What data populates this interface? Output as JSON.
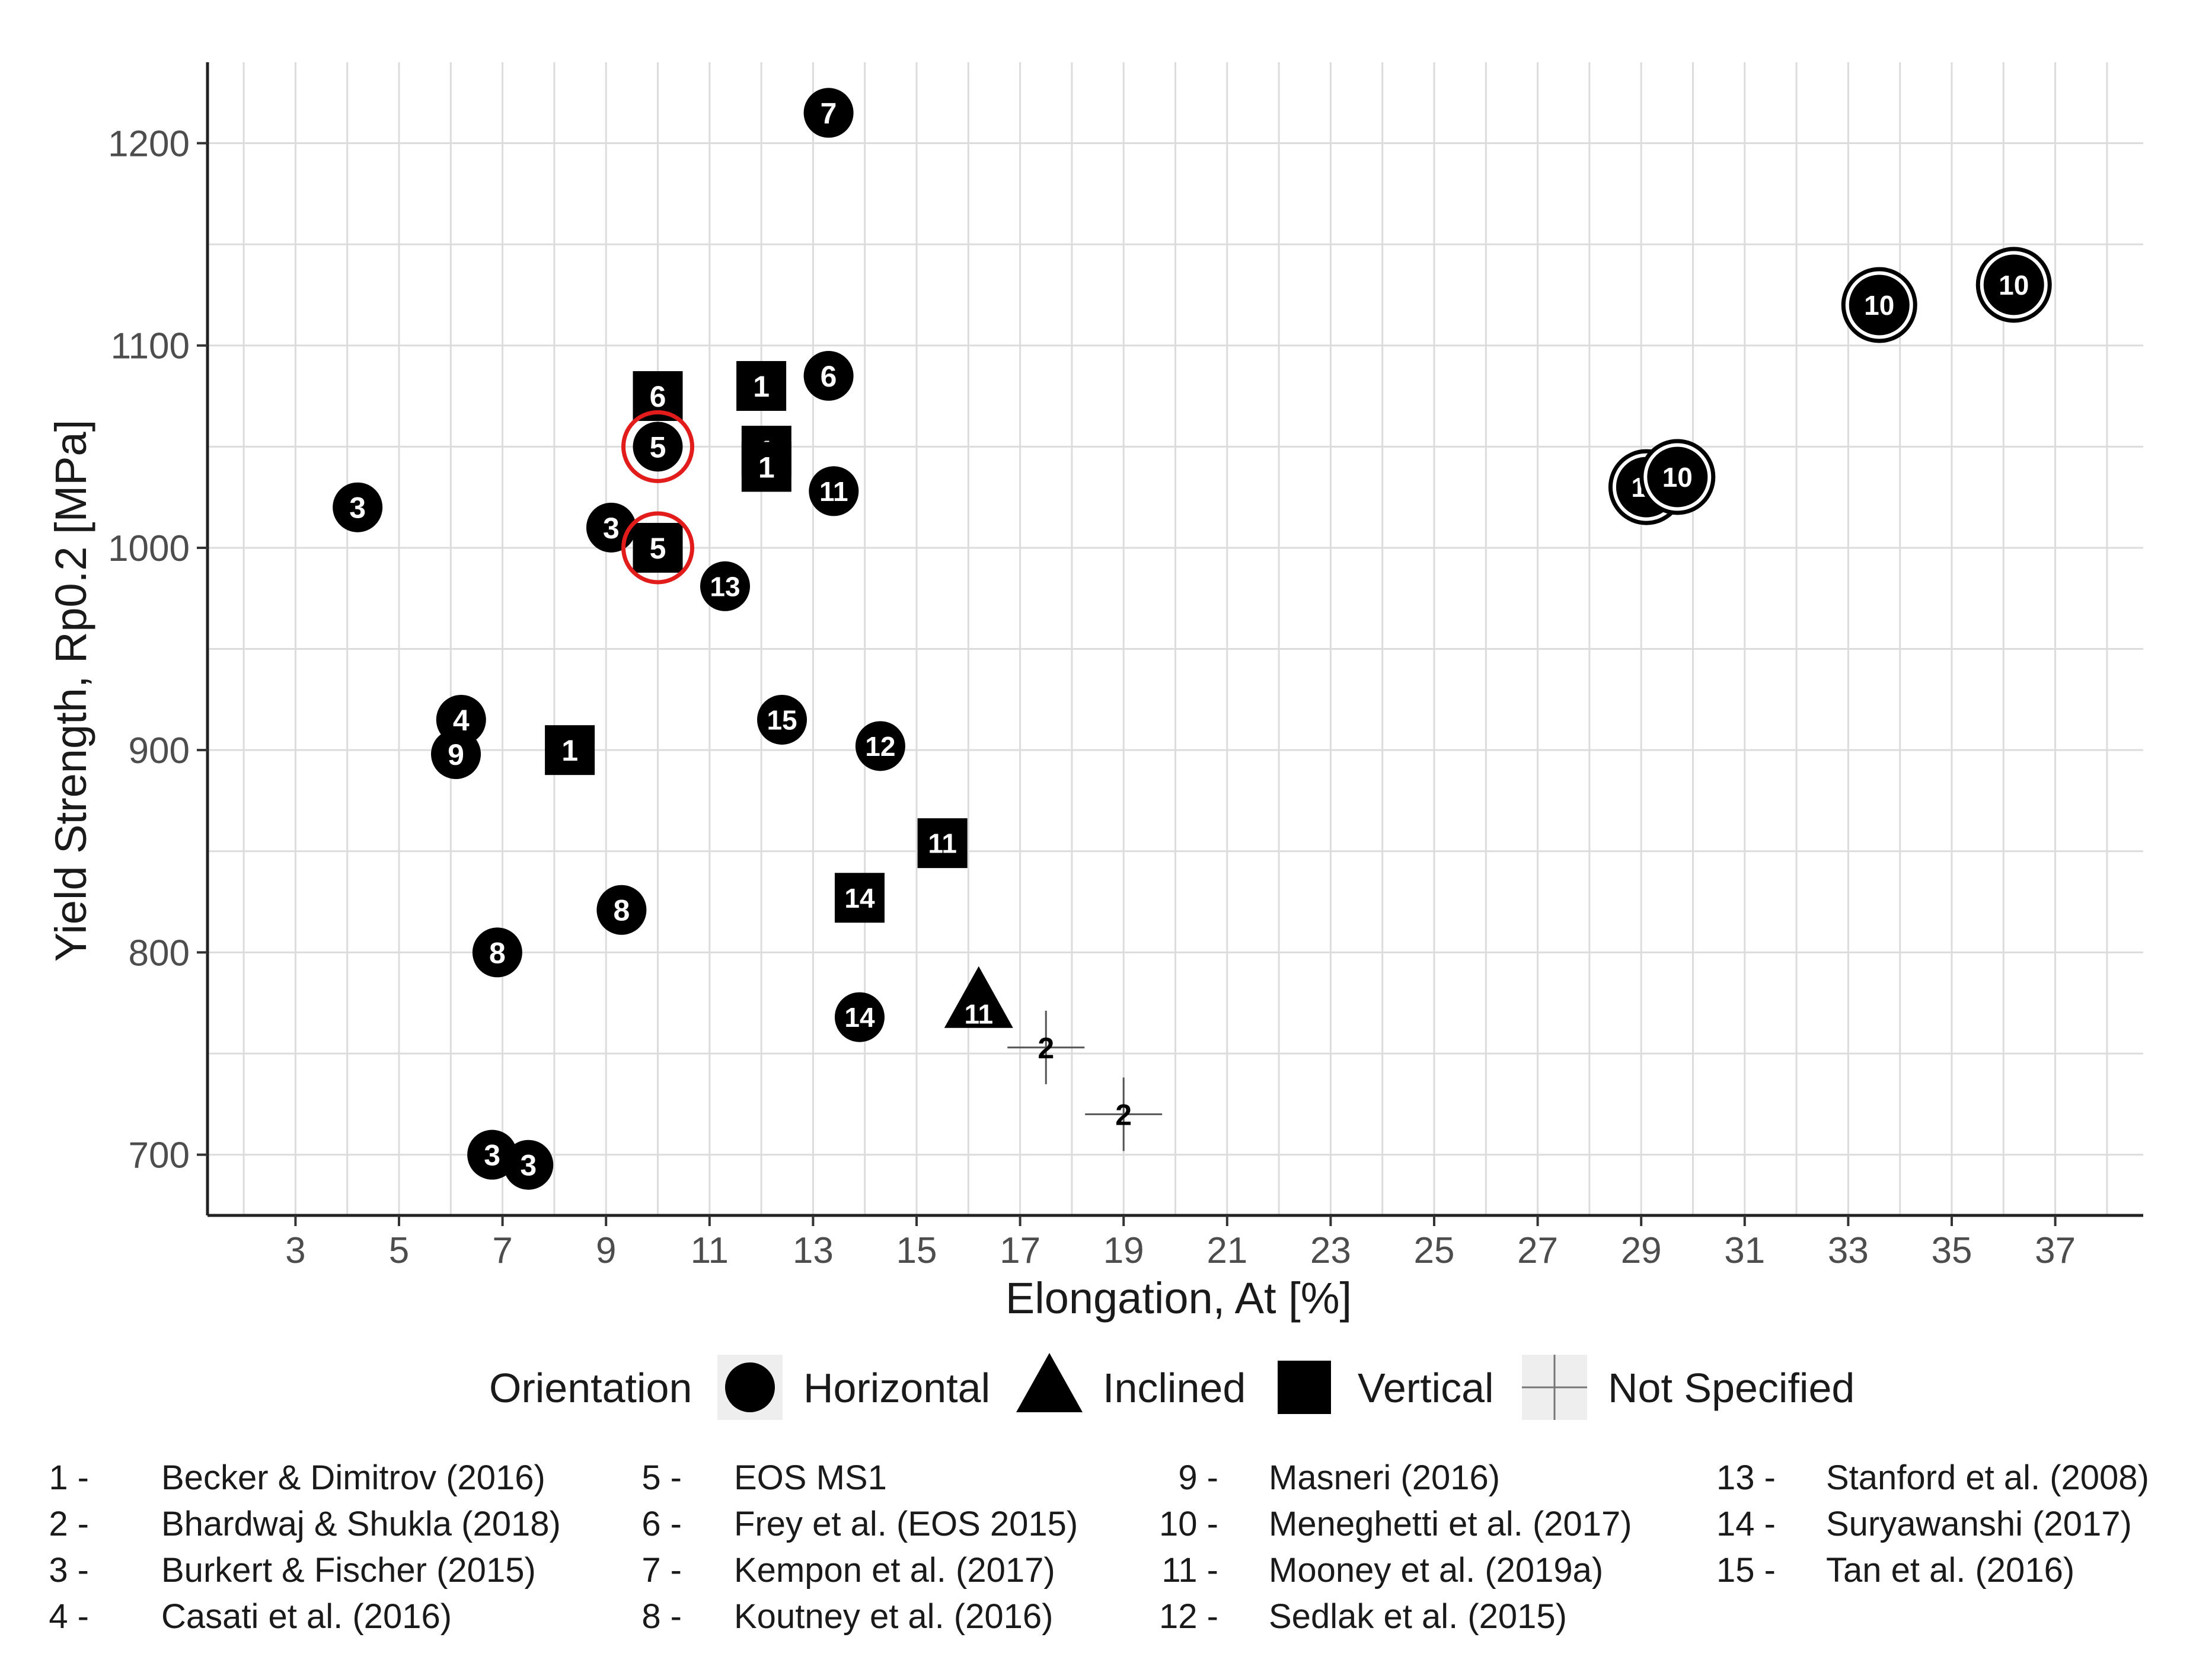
{
  "chart_data": {
    "type": "scatter",
    "title": "",
    "xlabel": "Elongation, At [%]",
    "ylabel": "Yield Strength, Rp0.2 [MPa]",
    "xlim": [
      1.3,
      38.7
    ],
    "ylim": [
      670,
      1240
    ],
    "xticks": [
      3,
      5,
      7,
      9,
      11,
      13,
      15,
      17,
      19,
      21,
      23,
      25,
      27,
      29,
      31,
      33,
      35,
      37
    ],
    "yticks": [
      700,
      800,
      900,
      1000,
      1100,
      1200
    ],
    "grid": true,
    "points": [
      {
        "x": 13.3,
        "y": 1215,
        "label": "7",
        "orientation": "Horizontal"
      },
      {
        "x": 33.6,
        "y": 1120,
        "label": "10",
        "orientation": "Horizontal",
        "ringed": true
      },
      {
        "x": 36.2,
        "y": 1130,
        "label": "10",
        "orientation": "Horizontal",
        "ringed": true
      },
      {
        "x": 29.1,
        "y": 1030,
        "label": "10",
        "orientation": "Horizontal",
        "ringed": true
      },
      {
        "x": 29.7,
        "y": 1035,
        "label": "10",
        "orientation": "Horizontal",
        "ringed": true
      },
      {
        "x": 10.0,
        "y": 1075,
        "label": "6",
        "orientation": "Vertical"
      },
      {
        "x": 12.0,
        "y": 1080,
        "label": "1",
        "orientation": "Vertical"
      },
      {
        "x": 13.3,
        "y": 1085,
        "label": "6",
        "orientation": "Horizontal"
      },
      {
        "x": 10.0,
        "y": 1050,
        "label": "5",
        "orientation": "Horizontal",
        "highlight": true
      },
      {
        "x": 12.1,
        "y": 1048,
        "label": "1",
        "orientation": "Vertical"
      },
      {
        "x": 12.1,
        "y": 1040,
        "label": "1",
        "orientation": "Vertical"
      },
      {
        "x": 13.4,
        "y": 1028,
        "label": "11",
        "orientation": "Horizontal"
      },
      {
        "x": 4.2,
        "y": 1020,
        "label": "3",
        "orientation": "Horizontal"
      },
      {
        "x": 9.1,
        "y": 1010,
        "label": "3",
        "orientation": "Horizontal"
      },
      {
        "x": 10.0,
        "y": 1000,
        "label": "5",
        "orientation": "Vertical",
        "highlight": true
      },
      {
        "x": 11.3,
        "y": 981,
        "label": "13",
        "orientation": "Horizontal"
      },
      {
        "x": 6.2,
        "y": 915,
        "label": "4",
        "orientation": "Horizontal"
      },
      {
        "x": 12.4,
        "y": 915,
        "label": "15",
        "orientation": "Horizontal"
      },
      {
        "x": 6.1,
        "y": 898,
        "label": "9",
        "orientation": "Horizontal"
      },
      {
        "x": 8.3,
        "y": 900,
        "label": "1",
        "orientation": "Vertical"
      },
      {
        "x": 14.3,
        "y": 902,
        "label": "12",
        "orientation": "Horizontal"
      },
      {
        "x": 15.5,
        "y": 854,
        "label": "11",
        "orientation": "Vertical"
      },
      {
        "x": 13.9,
        "y": 827,
        "label": "14",
        "orientation": "Vertical"
      },
      {
        "x": 9.3,
        "y": 821,
        "label": "8",
        "orientation": "Horizontal"
      },
      {
        "x": 6.9,
        "y": 800,
        "label": "8",
        "orientation": "Horizontal"
      },
      {
        "x": 16.2,
        "y": 775,
        "label": "11",
        "orientation": "Inclined"
      },
      {
        "x": 13.9,
        "y": 768,
        "label": "14",
        "orientation": "Horizontal"
      },
      {
        "x": 17.5,
        "y": 753,
        "label": "2",
        "orientation": "Not Specified"
      },
      {
        "x": 19.0,
        "y": 720,
        "label": "2",
        "orientation": "Not Specified"
      },
      {
        "x": 6.8,
        "y": 700,
        "label": "3",
        "orientation": "Horizontal"
      },
      {
        "x": 7.5,
        "y": 695,
        "label": "3",
        "orientation": "Horizontal"
      }
    ],
    "legend": {
      "title": "Orientation",
      "position": "bottom",
      "entries": [
        {
          "shape": "circle",
          "label": "Horizontal"
        },
        {
          "shape": "triangle",
          "label": "Inclined"
        },
        {
          "shape": "square",
          "label": "Vertical"
        },
        {
          "shape": "cross",
          "label": "Not Specified"
        }
      ]
    },
    "references": [
      {
        "num": "1 -",
        "name": "Becker & Dimitrov (2016)"
      },
      {
        "num": "2 -",
        "name": "Bhardwaj & Shukla (2018)"
      },
      {
        "num": "3 -",
        "name": "Burkert & Fischer (2015)"
      },
      {
        "num": "4 -",
        "name": "Casati et al. (2016)"
      },
      {
        "num": "5 -",
        "name": "EOS MS1"
      },
      {
        "num": "6 -",
        "name": "Frey et al. (EOS 2015)"
      },
      {
        "num": "7 -",
        "name": "Kempon et al. (2017)"
      },
      {
        "num": "8 -",
        "name": "Koutney et al. (2016)"
      },
      {
        "num": "9 -",
        "name": "Masneri (2016)"
      },
      {
        "num": "10 -",
        "name": "Meneghetti et al. (2017)"
      },
      {
        "num": "11 -",
        "name": "Mooney et al. (2019a)"
      },
      {
        "num": "12 -",
        "name": "Sedlak et al. (2015)"
      },
      {
        "num": "13 -",
        "name": "Stanford et al. (2008)"
      },
      {
        "num": "14 -",
        "name": "Suryawanshi (2017)"
      },
      {
        "num": "15 -",
        "name": "Tan et al. (2016)"
      }
    ],
    "colors": {
      "marker": "#000000",
      "highlight": "#e21b1b",
      "grid": "#dcdcdc",
      "marker_text": "#ffffff"
    }
  }
}
